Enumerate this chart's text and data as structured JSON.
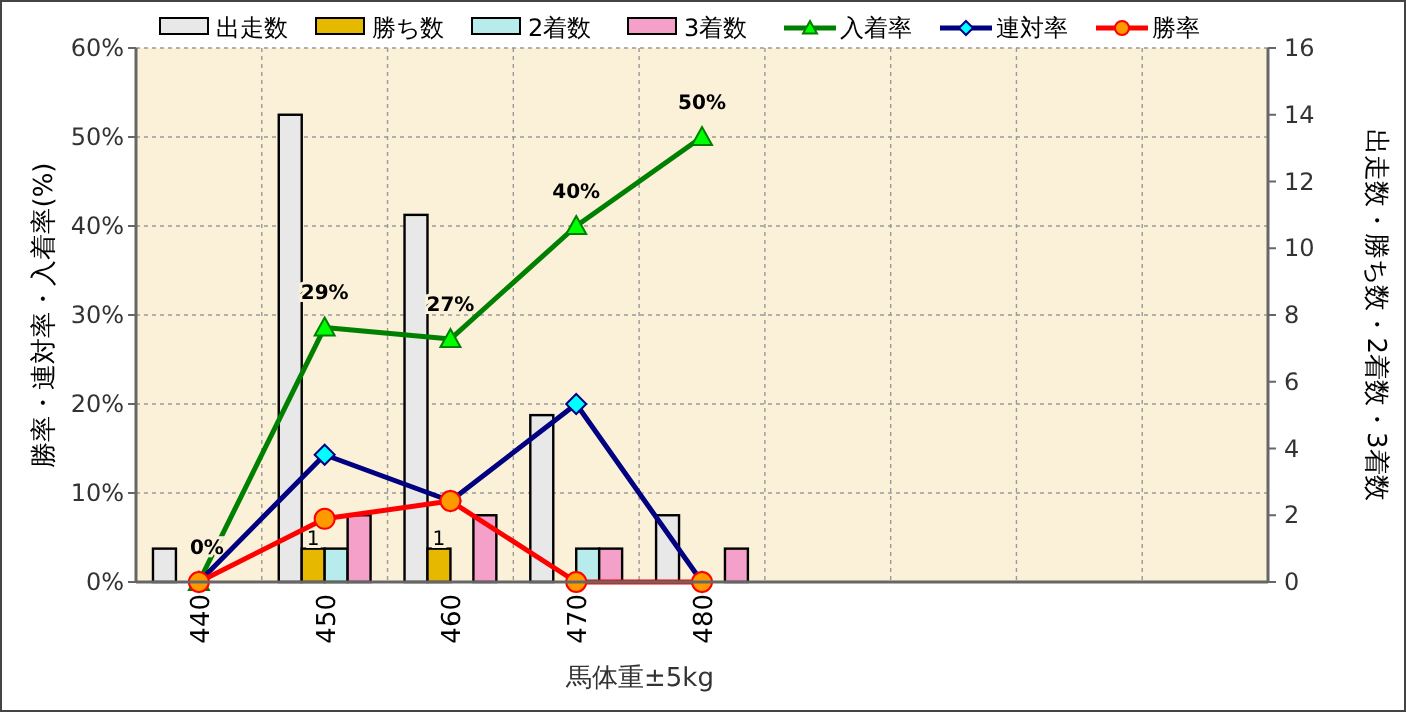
{
  "chart_data": {
    "type": "bar",
    "xlabel": "馬体重±5kg",
    "ylabel": "勝率・連対率・入着率(%)",
    "y2label": "出走数・勝ち数・2着数・3着数",
    "categories": [
      "440",
      "450",
      "460",
      "470",
      "480",
      null,
      null,
      null,
      null
    ],
    "ylim": [
      0,
      60
    ],
    "yticks": [
      {
        "value": 0,
        "label": "0%"
      },
      {
        "value": 10,
        "label": "10%"
      },
      {
        "value": 20,
        "label": "20%"
      },
      {
        "value": 30,
        "label": "30%"
      },
      {
        "value": 40,
        "label": "40%"
      },
      {
        "value": 50,
        "label": "50%"
      },
      {
        "value": 60,
        "label": "60%"
      }
    ],
    "y2lim": [
      0,
      16
    ],
    "y2ticks": [
      0,
      2,
      4,
      6,
      8,
      10,
      12,
      14,
      16
    ],
    "grid": true,
    "legend": "top",
    "series": [
      {
        "name": "出走数",
        "axis": "y2",
        "color": "#e8e8e8",
        "values": [
          1,
          14,
          11,
          5,
          2,
          null,
          null,
          null,
          null
        ]
      },
      {
        "name": "勝ち数",
        "axis": "y2",
        "color": "#e6b800",
        "values": [
          0,
          1,
          1,
          0,
          0,
          null,
          null,
          null,
          null
        ],
        "value_labels": [
          null,
          "1",
          "1",
          null,
          null,
          null,
          null,
          null,
          null
        ]
      },
      {
        "name": "2着数",
        "axis": "y2",
        "color": "#b8ecec",
        "values": [
          0,
          1,
          0,
          1,
          0,
          null,
          null,
          null,
          null
        ]
      },
      {
        "name": "3着数",
        "axis": "y2",
        "color": "#f4a0c8",
        "values": [
          0,
          2,
          2,
          1,
          1,
          null,
          null,
          null,
          null
        ]
      },
      {
        "name": "入着率",
        "type": "line",
        "color": "#008000",
        "marker": "triangle",
        "values": [
          0,
          28.6,
          27.3,
          40,
          50,
          null,
          null,
          null,
          null
        ],
        "value_labels": [
          "0%",
          "29%",
          "27%",
          "40%",
          "50%",
          null,
          null,
          null,
          null
        ]
      },
      {
        "name": "連対率",
        "type": "line",
        "color": "#000080",
        "marker": "diamond",
        "values": [
          0,
          14.3,
          9.1,
          20,
          0,
          null,
          null,
          null,
          null
        ]
      },
      {
        "name": "勝率",
        "type": "line",
        "color": "#ff0000",
        "marker": "circle",
        "values": [
          0,
          7.1,
          9.1,
          0,
          0,
          null,
          null,
          null,
          null
        ]
      }
    ]
  }
}
